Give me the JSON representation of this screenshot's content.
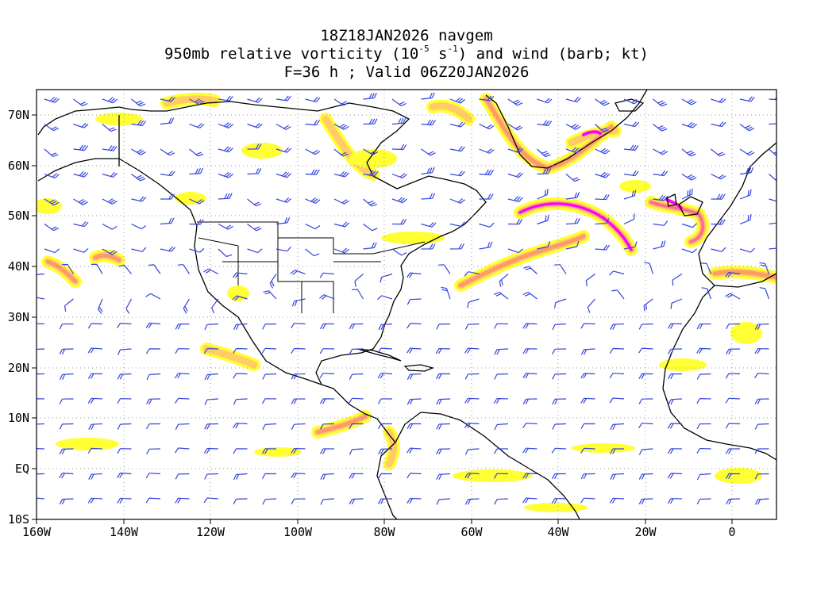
{
  "title": {
    "line1": "18Z18JAN2026 navgem",
    "line2_prefix": "950mb relative vorticity (10",
    "line2_exp1": "-5",
    "line2_mid": " s",
    "line2_exp2": "-1",
    "line2_suffix": ") and wind (barb; kt)",
    "line3": "F=36 h ; Valid 06Z20JAN2026"
  },
  "axes": {
    "longitude_labels": [
      "160W",
      "140W",
      "120W",
      "100W",
      "80W",
      "60W",
      "40W",
      "20W",
      "0"
    ],
    "latitude_labels": [
      "70N",
      "60N",
      "50N",
      "40N",
      "30N",
      "20N",
      "10N",
      "EQ",
      "10S"
    ],
    "lon_range": [
      -160,
      10
    ],
    "lat_range": [
      -10,
      75
    ]
  },
  "colors": {
    "wind_barb": "#3344dd",
    "coastline": "#000000",
    "grid": "#999999",
    "vorticity_shades": [
      "#ffff33",
      "#ffcc66",
      "#ff9966",
      "#ff6699",
      "#ff00ff"
    ]
  }
}
